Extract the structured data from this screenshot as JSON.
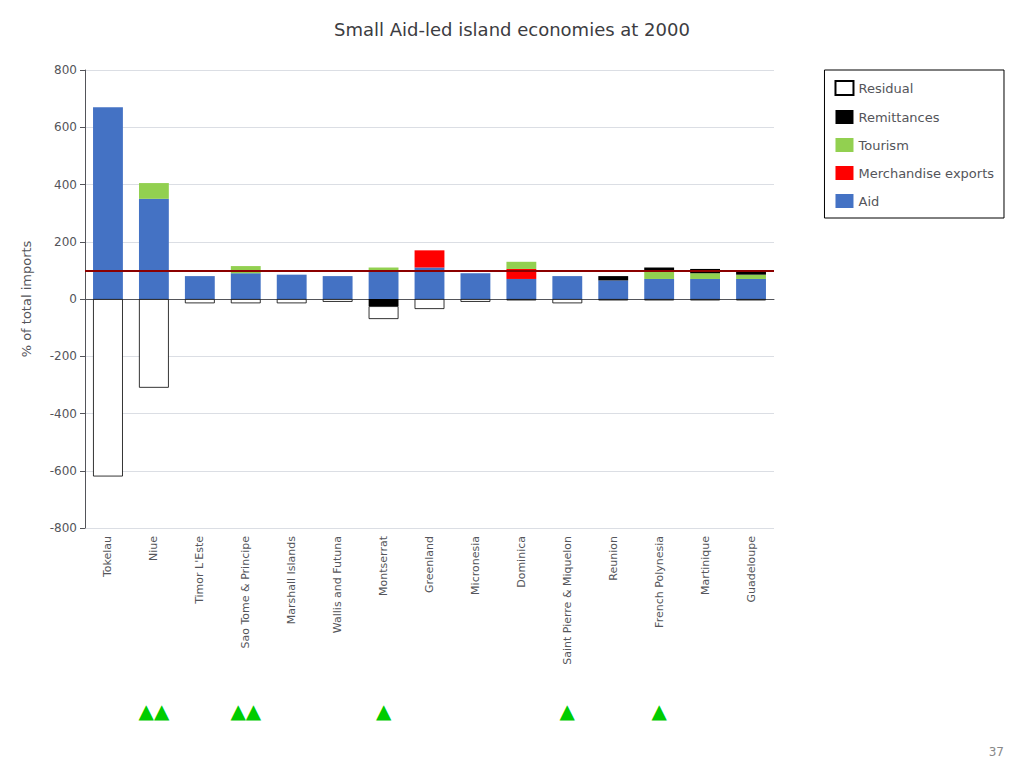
{
  "chart_data": {
    "type": "bar",
    "title": "Small Aid-led island economies at 2000",
    "ylabel": "% of total imports",
    "categories": [
      "Tokelau",
      "Niue",
      "Timor L'Este",
      "Sao Tome & Principe",
      "Marshall Islands",
      "Wallis and Futuna",
      "Montserrat",
      "Greenland",
      "Micronesia",
      "Dominica",
      "Saint Pierre & Miquelon",
      "Reunion",
      "French Polynesia",
      "Martinique",
      "Guadeloupe"
    ],
    "series": [
      {
        "name": "Residual",
        "color": "#FFFFFF",
        "values": [
          -620,
          -310,
          -15,
          -15,
          -15,
          -10,
          -45,
          -35,
          -10,
          -5,
          -15,
          -5,
          -5,
          -5,
          -5
        ]
      },
      {
        "name": "Remittances",
        "color": "#000000",
        "values": [
          0,
          0,
          0,
          0,
          0,
          0,
          -25,
          0,
          0,
          0,
          0,
          15,
          15,
          15,
          15
        ]
      },
      {
        "name": "Tourism",
        "color": "#92D050",
        "values": [
          0,
          55,
          0,
          25,
          0,
          0,
          15,
          0,
          0,
          25,
          0,
          0,
          25,
          20,
          15
        ]
      },
      {
        "name": "Merchandise exports",
        "color": "#FF0000",
        "values": [
          0,
          0,
          0,
          0,
          0,
          0,
          0,
          60,
          0,
          35,
          0,
          0,
          0,
          0,
          0
        ]
      },
      {
        "name": "Aid",
        "color": "#4472C4",
        "values": [
          670,
          350,
          80,
          90,
          85,
          80,
          95,
          110,
          90,
          70,
          80,
          65,
          70,
          70,
          70
        ]
      }
    ],
    "stacked": true,
    "ylim": [
      -800,
      800
    ],
    "yticks": [
      -800,
      -600,
      -400,
      -200,
      0,
      200,
      400,
      600,
      800
    ],
    "grid": true,
    "legend": "upper right",
    "reference_lines": [
      {
        "value": 100,
        "color": "#8B0000"
      }
    ],
    "annotations": [
      {
        "category": "Niue",
        "text": "▲▲",
        "color": "#00CC00"
      },
      {
        "category": "Sao Tome & Principe",
        "text": "▲▲",
        "color": "#00CC00"
      },
      {
        "category": "Montserrat",
        "text": "▲",
        "color": "#00CC00"
      },
      {
        "category": "Saint Pierre & Miquelon",
        "text": "▲",
        "color": "#00CC00"
      },
      {
        "category": "French Polynesia",
        "text": "▲",
        "color": "#00CC00"
      }
    ],
    "page_number": "37"
  }
}
